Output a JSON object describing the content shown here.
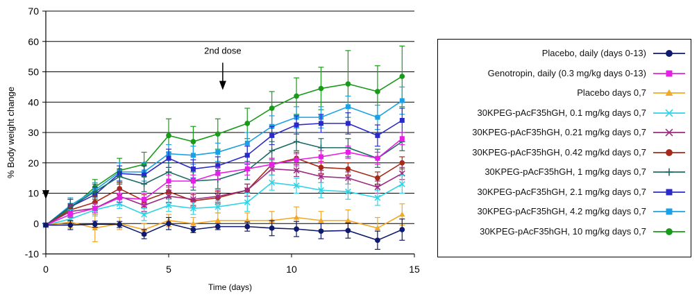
{
  "chart_data": {
    "type": "line",
    "xlabel": "Time (days)",
    "ylabel": "% Body weight change",
    "xlim": [
      0,
      15
    ],
    "ylim": [
      -10,
      70
    ],
    "xticks": [
      "0",
      "5",
      "10",
      "15"
    ],
    "yticks": [
      "-10",
      "0",
      "10",
      "20",
      "30",
      "40",
      "50",
      "60",
      "70"
    ],
    "annotation": {
      "text": "2nd dose",
      "x": 7.2,
      "y": 49
    },
    "x": [
      0,
      1,
      2,
      3,
      4,
      5,
      6,
      7,
      8.2,
      9.2,
      10.2,
      11.2,
      12.3,
      13.5,
      14.5
    ],
    "series": [
      {
        "name": "Placebo, daily (days 0-13)",
        "color": "#0d1a6e",
        "marker": "circle",
        "values": [
          -0.5,
          -0.5,
          -0.2,
          -0.3,
          -3.5,
          0,
          -2,
          -1,
          -1,
          -1.5,
          -1.8,
          -2.5,
          -2.3,
          -5.5,
          -2
        ],
        "errors": [
          0.5,
          1.5,
          1,
          1,
          1.5,
          2,
          1,
          1,
          1.5,
          2.5,
          2.5,
          2.5,
          2.5,
          3,
          3.5
        ]
      },
      {
        "name": "Genotropin, daily (0.3 mg/kg days 0-13)",
        "color": "#e61ee6",
        "marker": "square",
        "values": [
          -0.5,
          3,
          5,
          8.5,
          8,
          14,
          14,
          16.5,
          18,
          19.5,
          21,
          22,
          23.5,
          21.5,
          28
        ],
        "errors": [
          0.5,
          1,
          1.5,
          1.5,
          2,
          2,
          2,
          2,
          2,
          2,
          2,
          2,
          2,
          2,
          2
        ]
      },
      {
        "name": "Placebo days 0,7",
        "color": "#f5a623",
        "marker": "triangle",
        "values": [
          -0.5,
          0.5,
          -1.5,
          0,
          -2,
          1,
          0,
          1,
          1,
          1,
          2,
          1,
          1,
          -1.5,
          3
        ],
        "errors": [
          0.5,
          2,
          4.5,
          2,
          2,
          2,
          2,
          2.5,
          2.5,
          3,
          3.5,
          3,
          3.5,
          3.5,
          3.5
        ]
      },
      {
        "name": "30KPEG-pAcF35hGH, 0.1 mg/kg days 0,7",
        "color": "#2fd3e6",
        "marker": "x",
        "values": [
          -0.5,
          1.5,
          4.5,
          6.5,
          3,
          6,
          5,
          5.5,
          7,
          13.5,
          12.5,
          11,
          10.5,
          8.5,
          13
        ],
        "errors": [
          0.5,
          3,
          2,
          1.5,
          2,
          2,
          2,
          2,
          3,
          2.5,
          2.5,
          2.5,
          2.5,
          2.5,
          3
        ]
      },
      {
        "name": "30KPEG-pAcF35hGH, 0.21 mg/kg days 0,7",
        "color": "#9c2a80",
        "marker": "x",
        "values": [
          -0.5,
          4,
          5,
          9,
          6,
          9,
          8,
          9,
          11,
          18,
          17.5,
          15.5,
          15,
          12,
          16.5
        ],
        "errors": [
          0.5,
          2,
          2,
          2,
          2,
          2,
          2,
          2,
          2,
          2,
          2,
          2,
          2,
          2,
          2
        ]
      },
      {
        "name": "30KPEG-pAcF35hGH, 0.42 mg/kd days 0,7",
        "color": "#a62a1a",
        "marker": "circle",
        "values": [
          -0.5,
          4.5,
          7,
          11.5,
          7.5,
          10.5,
          7.5,
          8.5,
          11,
          19.5,
          21.5,
          18.5,
          18,
          15,
          20
        ],
        "errors": [
          0.5,
          2,
          2,
          2,
          2,
          2,
          2,
          2,
          2,
          2,
          2,
          2,
          2,
          2,
          2
        ]
      },
      {
        "name": "30KPEG-pAcF35hGH, 1 mg/kg days 0,7",
        "color": "#1a6b64",
        "marker": "plus",
        "values": [
          -0.5,
          5.5,
          10.5,
          15.5,
          13,
          17,
          14,
          14.5,
          17.5,
          24,
          27,
          25,
          25,
          21.5,
          27
        ],
        "errors": [
          0.5,
          2.5,
          2.5,
          2.5,
          2.5,
          3,
          3,
          3,
          3,
          3,
          3,
          3,
          3,
          3,
          3
        ]
      },
      {
        "name": "30KPEG-pAcF35hGH, 2.1 mg/kg days 0,7",
        "color": "#2a2ac8",
        "marker": "square",
        "values": [
          -0.5,
          5.5,
          9.5,
          16.5,
          16,
          21.5,
          18,
          19,
          22.5,
          29,
          32.5,
          33,
          33,
          29,
          34
        ],
        "errors": [
          0.5,
          2.5,
          2.5,
          2.5,
          3,
          3,
          3,
          3,
          3,
          3,
          3,
          3,
          3.5,
          3.5,
          4
        ]
      },
      {
        "name": "30KPEG-pAcF35hGH, 4.2 mg/kg days 0,7",
        "color": "#1aa0e6",
        "marker": "square",
        "values": [
          -0.5,
          6,
          11,
          17,
          17,
          23,
          22.5,
          23.5,
          26.5,
          32,
          35,
          35,
          38.5,
          35,
          40.5
        ],
        "errors": [
          0.5,
          2.5,
          2.5,
          3,
          3,
          3,
          3,
          3,
          3.5,
          3.5,
          3.5,
          3.5,
          3.5,
          4,
          4.5
        ]
      },
      {
        "name": "30KPEG-pAcF35hGH, 10 mg/kg days 0,7",
        "color": "#1a9a1a",
        "marker": "circle",
        "values": [
          -0.5,
          5,
          12,
          17.5,
          19.5,
          29,
          27,
          29.5,
          33,
          38,
          42,
          44.5,
          46,
          43.5,
          48.5
        ],
        "errors": [
          0.5,
          3,
          2.5,
          4,
          4,
          5.5,
          5,
          5,
          5,
          5.5,
          6,
          7,
          11,
          8.5,
          10
        ]
      }
    ]
  }
}
